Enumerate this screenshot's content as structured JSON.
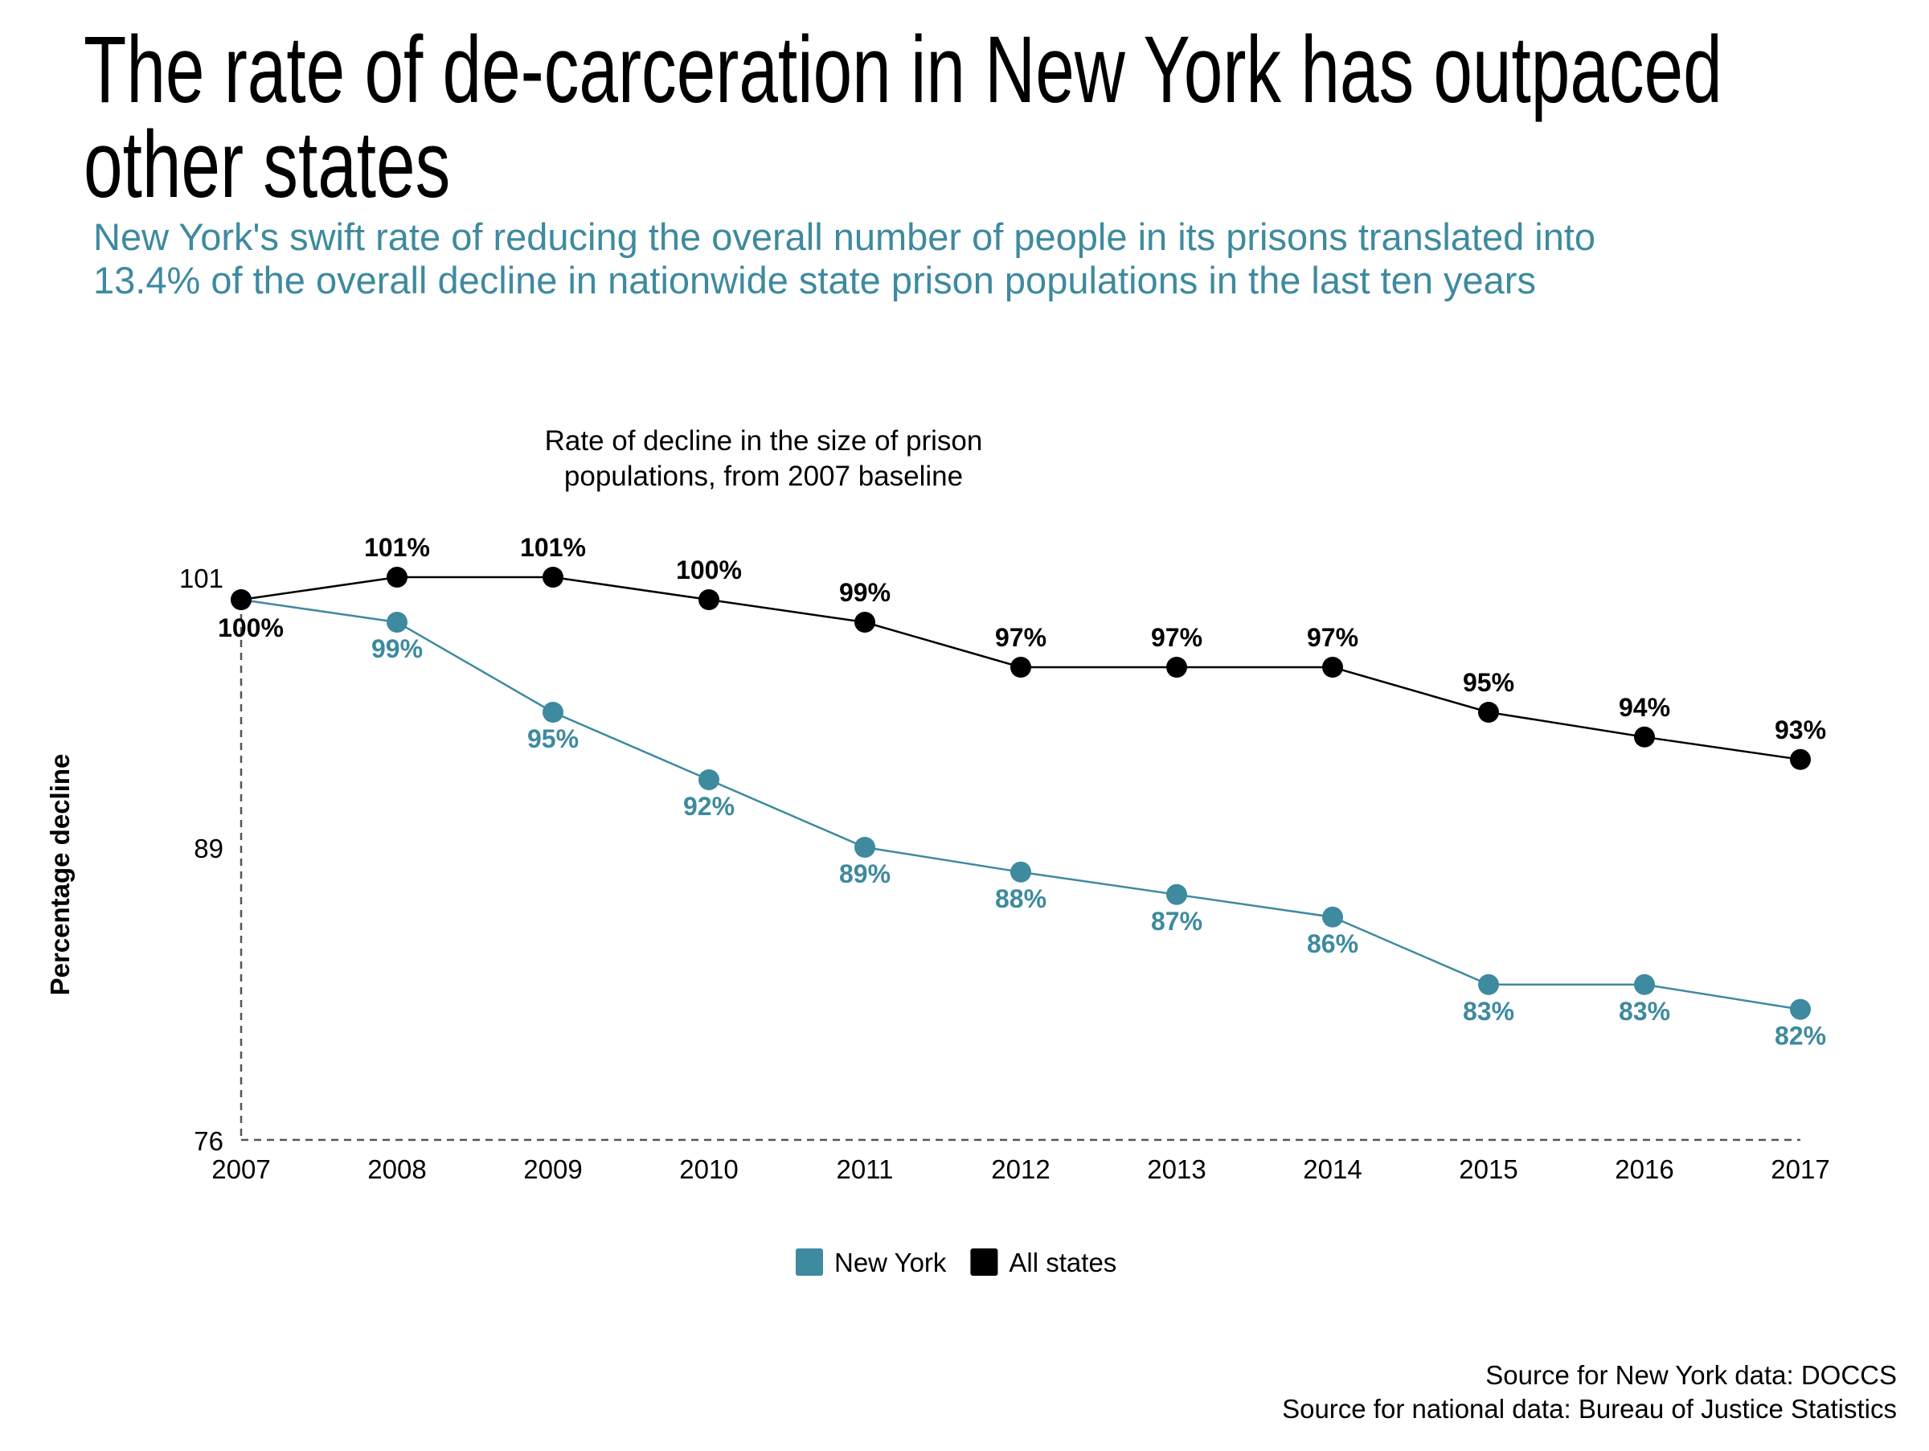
{
  "headline": {
    "line1": "The rate of de-carceration in New York has outpaced",
    "line2": "other states"
  },
  "subhead": {
    "line1": "New York's swift rate of reducing the overall number of people in its prisons translated into",
    "line2": "13.4% of the overall decline in nationwide state prison populations in the last ten years"
  },
  "source": {
    "line1": "Source for New York data: DOCCS",
    "line2": "Source for national data: Bureau of Justice Statistics"
  },
  "colors": {
    "new_york": "#3e8a9f",
    "all_states": "#000000",
    "axis": "#555555"
  },
  "chart_data": {
    "type": "line",
    "title_lines": [
      "Rate of decline in the size of prison",
      "populations, from 2007 baseline"
    ],
    "ylabel": "Percentage decline",
    "xlabel": "",
    "x": [
      "2007",
      "2008",
      "2009",
      "2010",
      "2011",
      "2012",
      "2013",
      "2014",
      "2015",
      "2016",
      "2017"
    ],
    "yticks": [
      76,
      89,
      101
    ],
    "ylim": [
      76,
      101
    ],
    "legend_position": "bottom-center",
    "grid": false,
    "series": [
      {
        "name": "New York",
        "color": "#3e8a9f",
        "values": [
          100.0,
          99.0,
          95.0,
          92.0,
          89.0,
          87.9,
          86.9,
          85.9,
          82.9,
          82.9,
          81.8
        ],
        "labels": [
          "",
          "99%",
          "95%",
          "92%",
          "89%",
          "88%",
          "87%",
          "86%",
          "83%",
          "83%",
          "82%"
        ]
      },
      {
        "name": "All states",
        "color": "#000000",
        "values": [
          100.0,
          101.0,
          101.0,
          100.0,
          99.0,
          97.0,
          97.0,
          97.0,
          95.0,
          93.9,
          92.9
        ],
        "labels": [
          "100%",
          "101%",
          "101%",
          "100%",
          "99%",
          "97%",
          "97%",
          "97%",
          "95%",
          "94%",
          "93%"
        ]
      }
    ]
  }
}
